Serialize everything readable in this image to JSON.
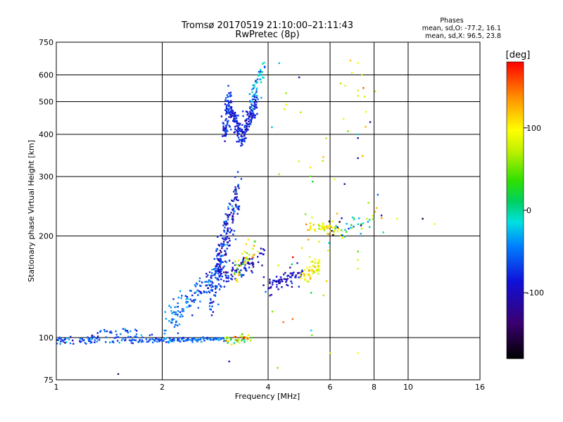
{
  "chart_data": {
    "type": "scatter",
    "title": "Tromsø 20170519 21:10:00–21:11:43",
    "subtitle": "RwPretec (8p)",
    "stats": {
      "heading": "Phases",
      "line1": "mean, sd,O:  -77.2, 16.1",
      "line2": "mean, sd,X:  96.5, 23.8"
    },
    "xlabel": "Frequency [MHz]",
    "ylabel": "Stationary phase Virtual Height [km]",
    "x_scale": "log",
    "y_scale": "log",
    "xlim": [
      1,
      16
    ],
    "ylim": [
      75,
      750
    ],
    "x_ticks": [
      1,
      2,
      4,
      6,
      8,
      10,
      16
    ],
    "x_tick_labels": [
      "1",
      "2",
      "4",
      "6",
      "8",
      "10",
      "16"
    ],
    "y_ticks": [
      75,
      100,
      200,
      300,
      400,
      500,
      600,
      750
    ],
    "y_tick_labels": [
      "75",
      "100",
      "200",
      "300",
      "400",
      "500",
      "600",
      "750"
    ],
    "grid_x": [
      2,
      4,
      6,
      8,
      10
    ],
    "grid_y": [
      100,
      200,
      300,
      400,
      500,
      600
    ],
    "colorbar": {
      "label": "[deg]",
      "range": [
        -180,
        180
      ],
      "ticks": [
        100,
        0,
        -100
      ],
      "tick_labels": [
        "100",
        "0",
        "-100"
      ]
    },
    "series": [
      {
        "segments": [
          {
            "x0": 1.0,
            "x1": 1.9,
            "y0": 98,
            "y1": 99,
            "n": 110,
            "sy": 0.015,
            "p0": -95,
            "p1": -90,
            "ps": 15
          },
          {
            "x0": 1.3,
            "x1": 1.8,
            "y0": 104,
            "y1": 105,
            "n": 22,
            "sy": 0.012,
            "p0": -100,
            "p1": -92,
            "ps": 15
          },
          {
            "x0": 1.9,
            "x1": 3.0,
            "y0": 98,
            "y1": 99,
            "n": 100,
            "sy": 0.008,
            "p0": -90,
            "p1": -85,
            "ps": 12
          },
          {
            "x0": 3.0,
            "x1": 3.6,
            "y0": 98,
            "y1": 99,
            "n": 45,
            "sy": 0.012,
            "p0": 60,
            "p1": 100,
            "ps": 70
          },
          {
            "x0": 2.0,
            "x1": 3.0,
            "y0": 108,
            "y1": 160,
            "n": 140,
            "sy": 0.05,
            "p0": -80,
            "p1": -100,
            "ps": 15
          },
          {
            "x0": 2.75,
            "x1": 3.3,
            "y0": 130,
            "y1": 280,
            "n": 230,
            "sy": 0.09,
            "p0": -105,
            "p1": -110,
            "ps": 15
          },
          {
            "x0": 3.0,
            "x1": 3.9,
            "y0": 150,
            "y1": 175,
            "n": 80,
            "sy": 0.03,
            "p0": -115,
            "p1": -120,
            "ps": 12
          },
          {
            "x0": 3.2,
            "x1": 3.7,
            "y0": 150,
            "y1": 190,
            "n": 40,
            "sy": 0.04,
            "p0": 70,
            "p1": 100,
            "ps": 40
          },
          {
            "x0": 3.95,
            "x1": 5.0,
            "y0": 140,
            "y1": 155,
            "n": 75,
            "sy": 0.03,
            "p0": -120,
            "p1": -115,
            "ps": 12
          },
          {
            "x0": 5.0,
            "x1": 5.6,
            "y0": 150,
            "y1": 165,
            "n": 55,
            "sy": 0.03,
            "p0": 100,
            "p1": 100,
            "ps": 15
          },
          {
            "x0": 3.0,
            "x1": 3.1,
            "y0": 400,
            "y1": 520,
            "n": 70,
            "sy": 0.05,
            "p0": -110,
            "p1": -100,
            "ps": 10
          },
          {
            "x0": 3.1,
            "x1": 3.35,
            "y0": 480,
            "y1": 390,
            "n": 90,
            "sy": 0.03,
            "p0": -110,
            "p1": -105,
            "ps": 10
          },
          {
            "x0": 3.35,
            "x1": 3.7,
            "y0": 390,
            "y1": 500,
            "n": 110,
            "sy": 0.04,
            "p0": -110,
            "p1": -105,
            "ps": 10
          },
          {
            "x0": 3.5,
            "x1": 3.9,
            "y0": 480,
            "y1": 640,
            "n": 45,
            "sy": 0.04,
            "p0": -70,
            "p1": -60,
            "ps": 25
          },
          {
            "x0": 5.2,
            "x1": 6.5,
            "y0": 215,
            "y1": 208,
            "n": 50,
            "sy": 0.02,
            "p0": 100,
            "p1": 95,
            "ps": 20
          },
          {
            "x0": 6.0,
            "x1": 8.5,
            "y0": 205,
            "y1": 230,
            "n": 40,
            "sy": 0.04,
            "p0": -110,
            "p1": 100,
            "ps": 60
          },
          {
            "x0": 4.0,
            "x1": 8.0,
            "y0": 80,
            "y1": 600,
            "n": 45,
            "sy": 0.35,
            "p0": 90,
            "p1": 100,
            "ps": 40
          }
        ]
      }
    ],
    "sparse_points": [
      {
        "x": 4.3,
        "y": 650,
        "p": -60
      },
      {
        "x": 4.9,
        "y": 590,
        "p": -130
      },
      {
        "x": 7.2,
        "y": 650,
        "p": 100
      },
      {
        "x": 7.2,
        "y": 540,
        "p": 85
      },
      {
        "x": 7.2,
        "y": 520,
        "p": 85
      },
      {
        "x": 7.2,
        "y": 400,
        "p": -60
      },
      {
        "x": 7.2,
        "y": 390,
        "p": -120
      },
      {
        "x": 7.2,
        "y": 340,
        "p": -120
      },
      {
        "x": 7.8,
        "y": 435,
        "p": -130
      },
      {
        "x": 4.1,
        "y": 420,
        "p": -60
      },
      {
        "x": 4.3,
        "y": 305,
        "p": 70
      },
      {
        "x": 6.6,
        "y": 285,
        "p": -130
      },
      {
        "x": 8.2,
        "y": 265,
        "p": -90
      },
      {
        "x": 8.4,
        "y": 230,
        "p": -130
      },
      {
        "x": 9.3,
        "y": 225,
        "p": 90
      },
      {
        "x": 11.0,
        "y": 225,
        "p": -160
      },
      {
        "x": 11.9,
        "y": 217,
        "p": 95
      },
      {
        "x": 7.2,
        "y": 180,
        "p": 40
      },
      {
        "x": 7.2,
        "y": 170,
        "p": 80
      },
      {
        "x": 7.2,
        "y": 160,
        "p": 80
      },
      {
        "x": 7.2,
        "y": 90,
        "p": 100
      },
      {
        "x": 6.0,
        "y": 90,
        "p": 85
      },
      {
        "x": 3.1,
        "y": 85,
        "p": -110
      },
      {
        "x": 1.5,
        "y": 78,
        "p": -140
      },
      {
        "x": 4.45,
        "y": 475,
        "p": 85
      },
      {
        "x": 4.5,
        "y": 490,
        "p": 95
      },
      {
        "x": 4.95,
        "y": 465,
        "p": 70
      },
      {
        "x": 4.5,
        "y": 530,
        "p": 60
      },
      {
        "x": 8.5,
        "y": 205,
        "p": -40
      },
      {
        "x": 5.3,
        "y": 105,
        "p": -50
      }
    ]
  }
}
